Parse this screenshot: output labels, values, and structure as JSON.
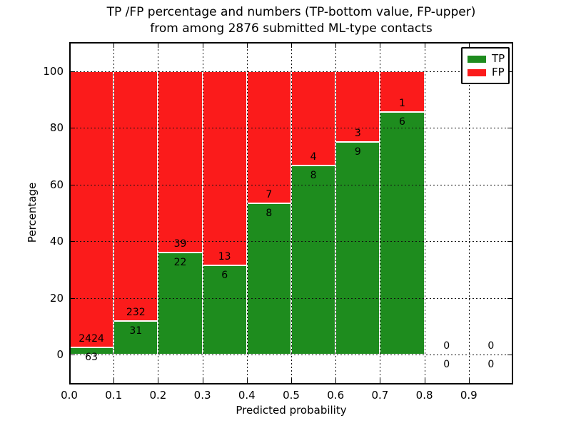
{
  "title": {
    "line1": "TP /FP percentage and numbers (TP-bottom value, FP-upper)",
    "line2": "from among 2876 submitted ML-type contacts"
  },
  "axes": {
    "x_label": "Predicted probability",
    "y_label": "Percentage",
    "x_tick_labels": [
      "0.0",
      "0.1",
      "0.2",
      "0.3",
      "0.4",
      "0.5",
      "0.6",
      "0.7",
      "0.8",
      "0.9"
    ],
    "y_tick_labels": [
      "0",
      "20",
      "40",
      "60",
      "80",
      "100"
    ],
    "y_tick_values": [
      0,
      20,
      40,
      60,
      80,
      100
    ]
  },
  "legend": {
    "items": [
      {
        "label": "TP",
        "color": "#1e8c1e"
      },
      {
        "label": "FP",
        "color": "#fb1b1b"
      }
    ]
  },
  "colors": {
    "tp_green": "#1e8c1e",
    "fp_red": "#fb1b1b",
    "background": "#ffffff",
    "grid": "#111111"
  },
  "chart_data": {
    "type": "bar",
    "stacked": true,
    "title": "TP /FP percentage and numbers (TP-bottom value, FP-upper) from among 2876 submitted ML-type contacts",
    "xlabel": "Predicted probability",
    "ylabel": "Percentage",
    "total_contacts": 2876,
    "bin_edges": [
      0.0,
      0.1,
      0.2,
      0.3,
      0.4,
      0.5,
      0.6,
      0.7,
      0.8,
      0.9,
      1.0
    ],
    "categories": [
      "0.0-0.1",
      "0.1-0.2",
      "0.2-0.3",
      "0.3-0.4",
      "0.4-0.5",
      "0.5-0.6",
      "0.6-0.7",
      "0.7-0.8",
      "0.8-0.9",
      "0.9-1.0"
    ],
    "series": [
      {
        "name": "TP",
        "position": "bottom",
        "counts": [
          63,
          31,
          22,
          6,
          8,
          8,
          9,
          6,
          0,
          0
        ],
        "percent": [
          2.53,
          11.79,
          36.07,
          31.58,
          53.33,
          66.67,
          75.0,
          85.71,
          0,
          0
        ]
      },
      {
        "name": "FP",
        "position": "upper",
        "counts": [
          2424,
          232,
          39,
          13,
          7,
          4,
          3,
          1,
          0,
          0
        ],
        "percent": [
          97.47,
          88.21,
          63.93,
          68.42,
          46.67,
          33.33,
          25.0,
          14.29,
          0,
          0
        ]
      }
    ],
    "ylim": [
      -10.6,
      110.3
    ],
    "xlim": [
      0.0,
      1.0
    ],
    "grid": true,
    "grid_style": "dotted",
    "legend_position": "upper right"
  }
}
